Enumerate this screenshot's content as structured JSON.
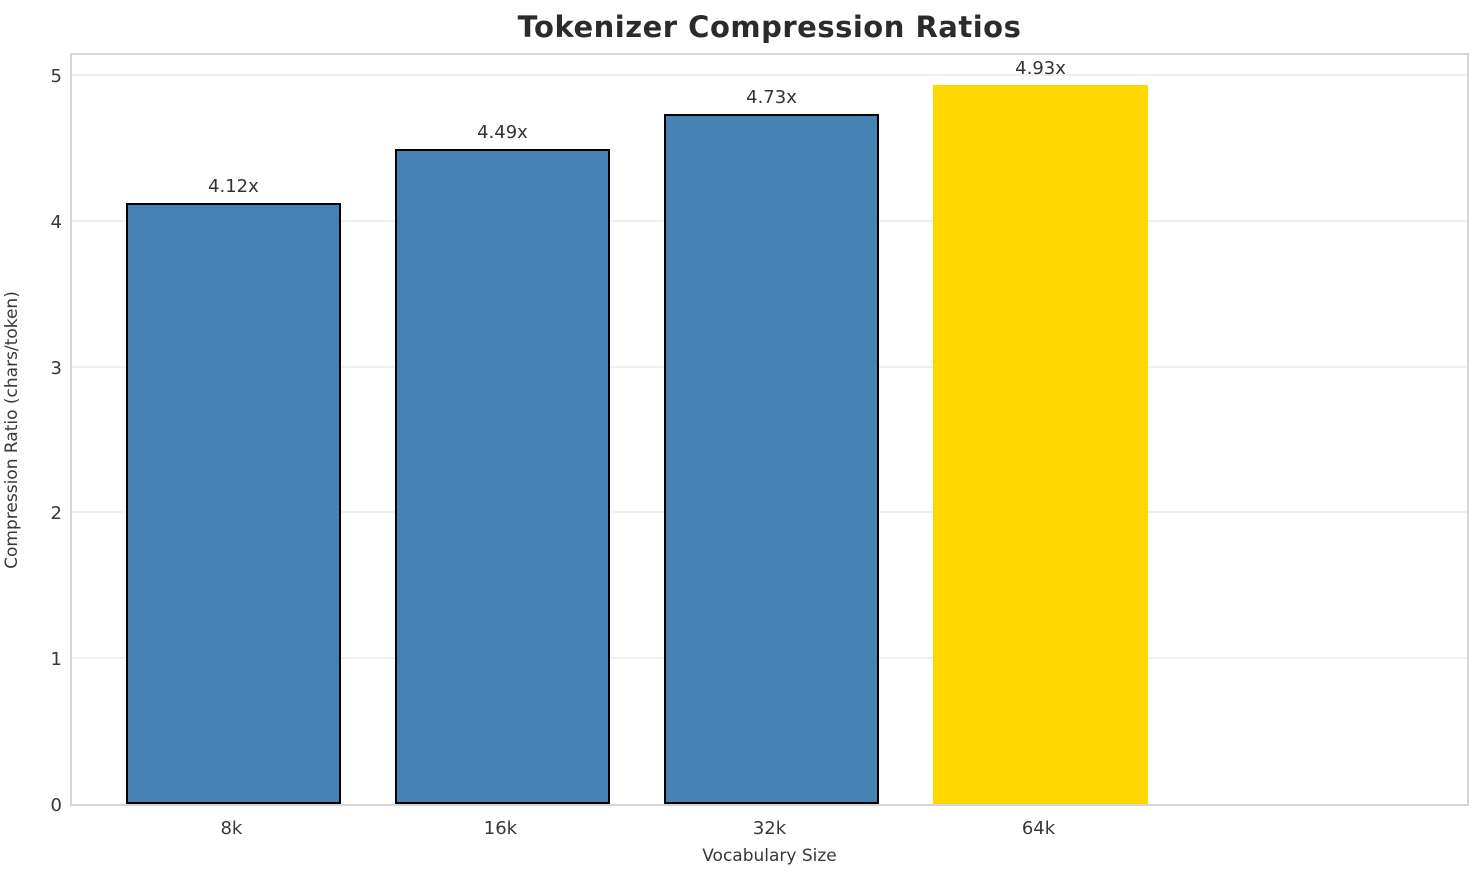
{
  "chart_data": {
    "type": "bar",
    "title": "Tokenizer Compression Ratios",
    "xlabel": "Vocabulary Size",
    "ylabel": "Compression Ratio (chars/token)",
    "categories": [
      "8k",
      "16k",
      "32k",
      "64k"
    ],
    "values": [
      4.12,
      4.49,
      4.73,
      4.93
    ],
    "bar_labels": [
      "4.12x",
      "4.49x",
      "4.73x",
      "4.93x"
    ],
    "yticks": [
      "0",
      "1",
      "2",
      "3",
      "4",
      "5"
    ],
    "ylim": [
      0,
      5
    ],
    "grid": "horizontal",
    "legend_position": "none",
    "highlight_index": 3,
    "colors": {
      "bar_default": "#4682b4",
      "bar_highlight": "#ffd700",
      "bar_edge_default": "#000000",
      "bar_edge_highlight": "none",
      "grid_line": "#f0f0f0",
      "spine": "#d5d5d5",
      "tick_text": "#383838",
      "value_label_text": "#333333",
      "title_text": "#2b2b2b",
      "background": "#ffffff"
    }
  }
}
